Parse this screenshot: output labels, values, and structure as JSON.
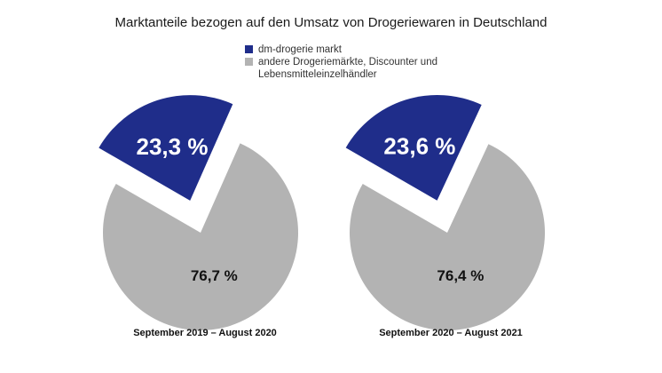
{
  "chart_data": {
    "type": "pie",
    "title": "Marktanteile bezogen auf den Umsatz von Drogeriewaren in Deutschland",
    "legend": [
      {
        "label": "dm-drogerie markt",
        "color": "#1f2d8a"
      },
      {
        "label": "andere Drogeriemärkte, Discounter und Lebensmitteleinzelhändler",
        "color": "#b3b3b3"
      }
    ],
    "charts": [
      {
        "period": "September 2019 – August 2020",
        "slices": [
          {
            "name": "dm-drogerie markt",
            "value": 23.3,
            "label": "23,3 %",
            "exploded": true
          },
          {
            "name": "andere Drogeriemärkte, Discounter und Lebensmitteleinzelhändler",
            "value": 76.7,
            "label": "76,7 %",
            "exploded": false
          }
        ]
      },
      {
        "period": "September 2020 – August 2021",
        "slices": [
          {
            "name": "dm-drogerie markt",
            "value": 23.6,
            "label": "23,6 %",
            "exploded": true
          },
          {
            "name": "andere Drogeriemärkte, Discounter und Lebensmitteleinzelhändler",
            "value": 76.4,
            "label": "76,4 %",
            "exploded": false
          }
        ]
      }
    ]
  }
}
